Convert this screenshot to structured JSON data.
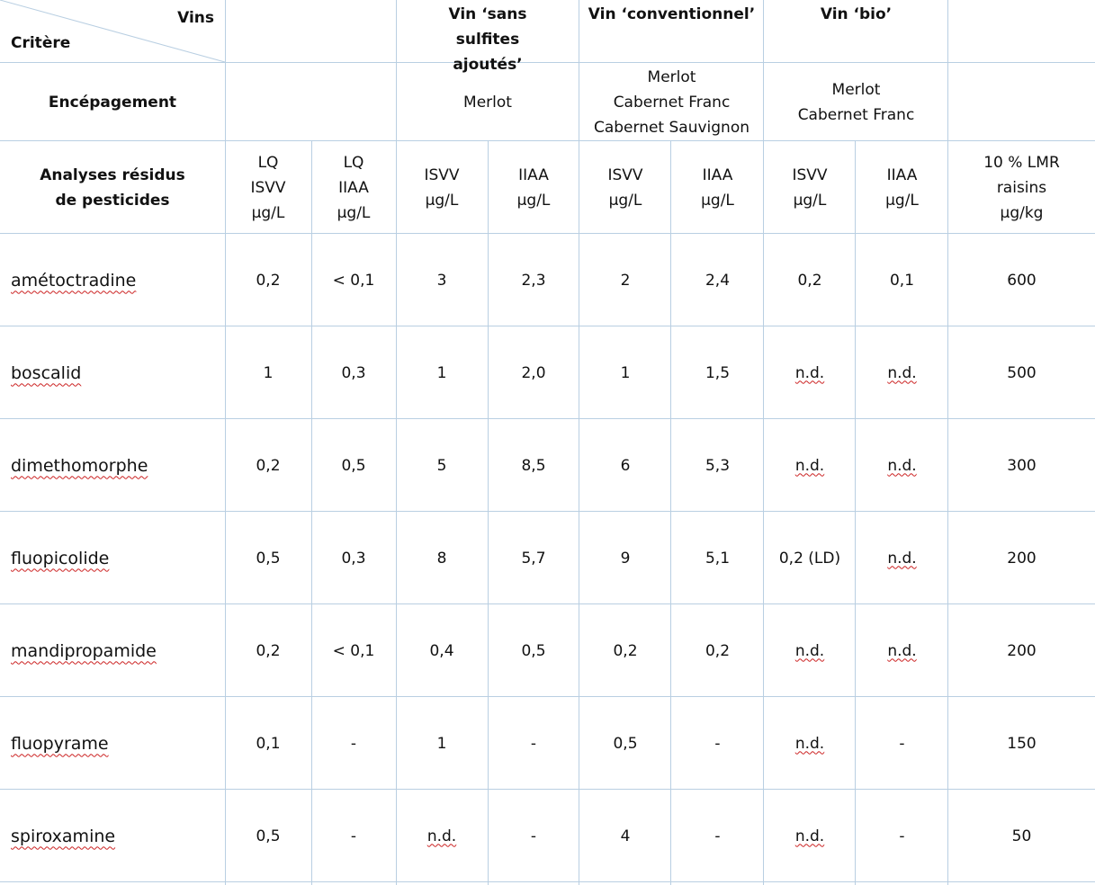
{
  "header": {
    "vins": "Vins",
    "critere": "Critère",
    "wine_types": [
      "Vin ‘sans sulfites ajoutés’",
      "Vin ‘conventionnel’",
      "Vin ‘bio’"
    ],
    "encepagement_label": "Encépagement",
    "encepagements": [
      "Merlot",
      "Merlot\nCabernet Franc\nCabernet Sauvignon",
      "Merlot\nCabernet Franc"
    ],
    "analyses_label": "Analyses résidus de pesticides",
    "analysis_columns": [
      "LQ\nISVV\nµg/L",
      "LQ\nIIAA\nµg/L",
      "ISVV\nµg/L",
      "IIAA\nµg/L",
      "ISVV\nµg/L",
      "IIAA\nµg/L",
      "ISVV\nµg/L",
      "IIAA\nµg/L",
      "10 % LMR\nraisins\nµg/kg"
    ]
  },
  "rows": [
    {
      "name": "amétoctradine",
      "values": [
        "0,2",
        "< 0,1",
        "3",
        "2,3",
        "2",
        "2,4",
        "0,2",
        "0,1",
        "600"
      ]
    },
    {
      "name": "boscalid",
      "values": [
        "1",
        "0,3",
        "1",
        "2,0",
        "1",
        "1,5",
        "n.d.",
        "n.d.",
        "500"
      ]
    },
    {
      "name": "dimethomorphe",
      "values": [
        "0,2",
        "0,5",
        "5",
        "8,5",
        "6",
        "5,3",
        "n.d.",
        "n.d.",
        "300"
      ]
    },
    {
      "name": "fluopicolide",
      "values": [
        "0,5",
        "0,3",
        "8",
        "5,7",
        "9",
        "5,1",
        "0,2 (LD)",
        "n.d.",
        "200"
      ]
    },
    {
      "name": "mandipropamide",
      "values": [
        "0,2",
        "< 0,1",
        "0,4",
        "0,5",
        "0,2",
        "0,2",
        "n.d.",
        "n.d.",
        "200"
      ]
    },
    {
      "name": "fluopyrame",
      "values": [
        "0,1",
        "-",
        "1",
        "-",
        "0,5",
        "-",
        "n.d.",
        "-",
        "150"
      ]
    },
    {
      "name": "spiroxamine",
      "values": [
        "0,5",
        "-",
        "n.d.",
        "-",
        "4",
        "-",
        "n.d.",
        "-",
        "50"
      ]
    }
  ],
  "colors": {
    "border": "#b9cfe2",
    "text": "#111111",
    "spell_underline": "#cc2222"
  }
}
